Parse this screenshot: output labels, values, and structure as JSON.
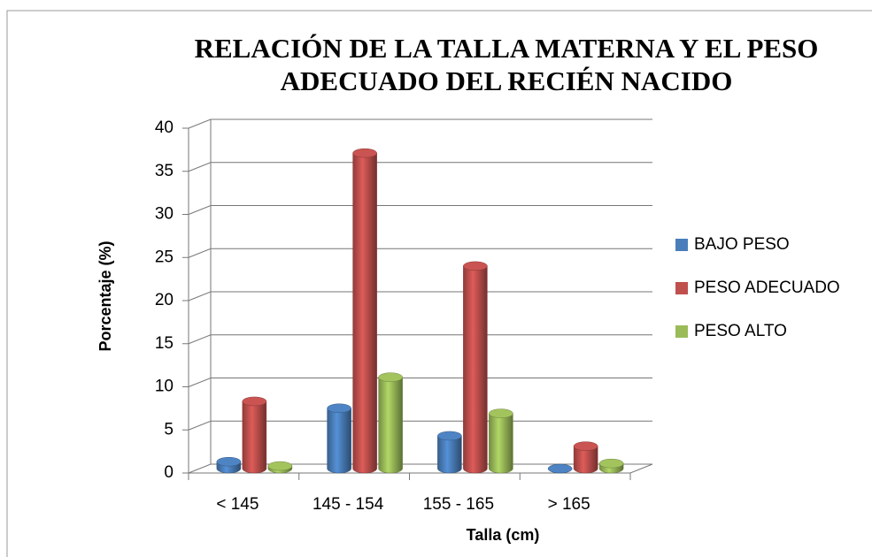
{
  "chart_data": {
    "type": "bar3d",
    "title": "RELACIÓN DE LA TALLA  MATERNA Y EL PESO ADECUADO  DEL RECIÉN NACIDO",
    "x_label": "Talla (cm)",
    "y_label": "Porcentaje (%)",
    "categories": [
      "< 145",
      "145 - 154",
      "155 - 165",
      "> 165"
    ],
    "series": [
      {
        "name": "BAJO PESO",
        "color": "#4a7ebb",
        "values": [
          0.8,
          7,
          3.8,
          0
        ]
      },
      {
        "name": "PESO ADECUADO",
        "color": "#c0504d",
        "values": [
          7.8,
          36.6,
          23.5,
          2.6
        ]
      },
      {
        "name": "PESO ALTO",
        "color": "#9bbb59",
        "values": [
          0.3,
          10.6,
          6.4,
          0.6
        ]
      }
    ],
    "ylim": [
      0,
      40
    ],
    "yticks": [
      0,
      5,
      10,
      15,
      20,
      25,
      30,
      35,
      40
    ],
    "grid": true,
    "legend": "right"
  }
}
